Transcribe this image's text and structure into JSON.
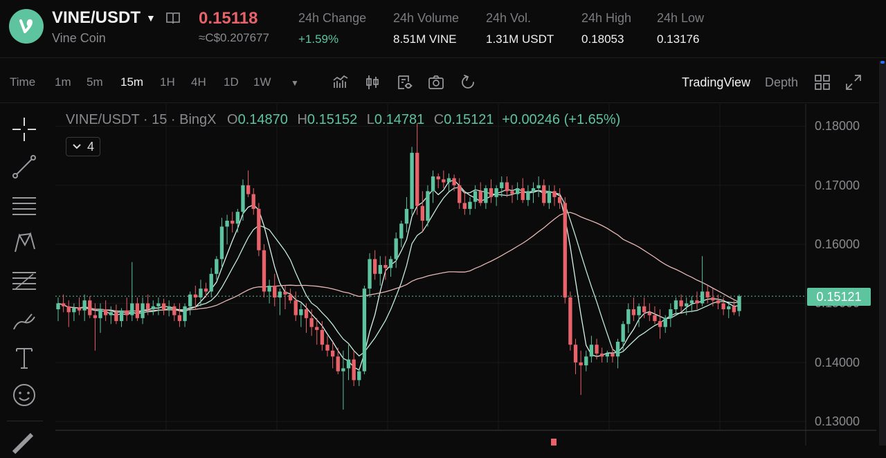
{
  "header": {
    "pair": "VINE/USDT",
    "coin_name": "Vine Coin",
    "price": "0.15118",
    "converted": "≈C$0.207677",
    "stats": [
      {
        "label": "24h Change",
        "value": "+1.59%",
        "up": true
      },
      {
        "label": "24h Volume",
        "value": "8.51M VINE",
        "up": false
      },
      {
        "label": "24h Vol.",
        "value": "1.31M USDT",
        "up": false
      },
      {
        "label": "24h High",
        "value": "0.18053",
        "up": false
      },
      {
        "label": "24h Low",
        "value": "0.13176",
        "up": false
      }
    ]
  },
  "toolbar": {
    "time_label": "Time",
    "timeframes": [
      "1m",
      "5m",
      "15m",
      "1H",
      "4H",
      "1D",
      "1W"
    ],
    "active_timeframe": "15m",
    "tradingview": "TradingView",
    "depth": "Depth"
  },
  "legend": {
    "title": "VINE/USDT · 15 · BingX",
    "o_label": "O",
    "o": "0.14870",
    "h_label": "H",
    "h": "0.15152",
    "l_label": "L",
    "l": "0.14781",
    "c_label": "C",
    "c": "0.15121",
    "change": "+0.00246 (+1.65%)",
    "indicators_count": "4"
  },
  "colors": {
    "up": "#5ec39f",
    "down": "#e8626a",
    "ma_fast": "#d6f5ea",
    "ma_mid": "#bfead6",
    "ma_slow": "#e7b7b5"
  },
  "chart_data": {
    "type": "candlestick",
    "y_ticks": [
      "0.18000",
      "0.17000",
      "0.16000",
      "0.15000",
      "0.14000",
      "0.13000"
    ],
    "ylim": [
      0.1285,
      0.1838
    ],
    "last_price": "0.15121",
    "candles": [
      [
        0.149,
        0.151,
        0.147,
        0.15
      ],
      [
        0.15,
        0.1515,
        0.1485,
        0.1495
      ],
      [
        0.1495,
        0.1505,
        0.146,
        0.1485
      ],
      [
        0.1485,
        0.15,
        0.147,
        0.1492
      ],
      [
        0.1492,
        0.151,
        0.148,
        0.1488
      ],
      [
        0.1488,
        0.1515,
        0.147,
        0.1505
      ],
      [
        0.1505,
        0.1512,
        0.1475,
        0.148
      ],
      [
        0.148,
        0.15,
        0.142,
        0.1475
      ],
      [
        0.1475,
        0.15,
        0.145,
        0.149
      ],
      [
        0.149,
        0.1505,
        0.147,
        0.148
      ],
      [
        0.148,
        0.1495,
        0.1465,
        0.1485
      ],
      [
        0.1485,
        0.1498,
        0.1465,
        0.147
      ],
      [
        0.147,
        0.1492,
        0.146,
        0.1488
      ],
      [
        0.1488,
        0.151,
        0.147,
        0.148
      ],
      [
        0.148,
        0.157,
        0.147,
        0.15
      ],
      [
        0.15,
        0.151,
        0.147,
        0.1475
      ],
      [
        0.1475,
        0.151,
        0.1465,
        0.15
      ],
      [
        0.15,
        0.1515,
        0.148,
        0.149
      ],
      [
        0.149,
        0.1505,
        0.148,
        0.1495
      ],
      [
        0.1495,
        0.151,
        0.148,
        0.15
      ],
      [
        0.15,
        0.1508,
        0.148,
        0.149
      ],
      [
        0.149,
        0.1505,
        0.1478,
        0.1495
      ],
      [
        0.1495,
        0.15,
        0.147,
        0.148
      ],
      [
        0.148,
        0.15,
        0.146,
        0.147
      ],
      [
        0.147,
        0.15,
        0.146,
        0.1495
      ],
      [
        0.1495,
        0.152,
        0.148,
        0.1515
      ],
      [
        0.1515,
        0.153,
        0.149,
        0.151
      ],
      [
        0.151,
        0.154,
        0.1495,
        0.1525
      ],
      [
        0.1525,
        0.1535,
        0.151,
        0.152
      ],
      [
        0.152,
        0.156,
        0.151,
        0.155
      ],
      [
        0.155,
        0.158,
        0.154,
        0.1575
      ],
      [
        0.1575,
        0.1645,
        0.156,
        0.163
      ],
      [
        0.163,
        0.165,
        0.16,
        0.164
      ],
      [
        0.164,
        0.1655,
        0.162,
        0.1635
      ],
      [
        0.1635,
        0.166,
        0.162,
        0.1655
      ],
      [
        0.1655,
        0.171,
        0.164,
        0.17
      ],
      [
        0.17,
        0.1725,
        0.168,
        0.1685
      ],
      [
        0.1685,
        0.1695,
        0.165,
        0.166
      ],
      [
        0.166,
        0.167,
        0.158,
        0.159
      ],
      [
        0.159,
        0.16,
        0.151,
        0.152
      ],
      [
        0.152,
        0.154,
        0.15,
        0.153
      ],
      [
        0.153,
        0.155,
        0.1495,
        0.151
      ],
      [
        0.151,
        0.1525,
        0.148,
        0.152
      ],
      [
        0.152,
        0.153,
        0.149,
        0.1515
      ],
      [
        0.1515,
        0.1525,
        0.15,
        0.1505
      ],
      [
        0.1505,
        0.152,
        0.147,
        0.148
      ],
      [
        0.148,
        0.15,
        0.146,
        0.149
      ],
      [
        0.149,
        0.15,
        0.145,
        0.1475
      ],
      [
        0.1475,
        0.149,
        0.1445,
        0.146
      ],
      [
        0.146,
        0.1475,
        0.143,
        0.1455
      ],
      [
        0.1455,
        0.147,
        0.142,
        0.143
      ],
      [
        0.143,
        0.1445,
        0.141,
        0.142
      ],
      [
        0.142,
        0.1435,
        0.139,
        0.141
      ],
      [
        0.141,
        0.1425,
        0.138,
        0.1385
      ],
      [
        0.1385,
        0.142,
        0.132,
        0.139
      ],
      [
        0.139,
        0.143,
        0.137,
        0.1405
      ],
      [
        0.1405,
        0.142,
        0.136,
        0.137
      ],
      [
        0.137,
        0.139,
        0.136,
        0.1385
      ],
      [
        0.1385,
        0.153,
        0.138,
        0.1525
      ],
      [
        0.1525,
        0.1585,
        0.151,
        0.1575
      ],
      [
        0.1575,
        0.159,
        0.154,
        0.155
      ],
      [
        0.155,
        0.158,
        0.153,
        0.1565
      ],
      [
        0.1565,
        0.158,
        0.154,
        0.156
      ],
      [
        0.156,
        0.158,
        0.1545,
        0.1575
      ],
      [
        0.1575,
        0.162,
        0.156,
        0.161
      ],
      [
        0.161,
        0.164,
        0.1595,
        0.1635
      ],
      [
        0.1635,
        0.168,
        0.162,
        0.166
      ],
      [
        0.166,
        0.1765,
        0.165,
        0.1755
      ],
      [
        0.1755,
        0.1805,
        0.165,
        0.1665
      ],
      [
        0.1665,
        0.169,
        0.162,
        0.164
      ],
      [
        0.164,
        0.17,
        0.163,
        0.169
      ],
      [
        0.169,
        0.1725,
        0.167,
        0.1715
      ],
      [
        0.1715,
        0.172,
        0.1695,
        0.171
      ],
      [
        0.171,
        0.1725,
        0.1695,
        0.1705
      ],
      [
        0.1705,
        0.172,
        0.169,
        0.1712
      ],
      [
        0.1712,
        0.1718,
        0.169,
        0.17
      ],
      [
        0.17,
        0.1712,
        0.166,
        0.167
      ],
      [
        0.167,
        0.169,
        0.165,
        0.166
      ],
      [
        0.166,
        0.168,
        0.165,
        0.1672
      ],
      [
        0.1672,
        0.17,
        0.166,
        0.169
      ],
      [
        0.169,
        0.1705,
        0.1665,
        0.167
      ],
      [
        0.167,
        0.17,
        0.166,
        0.1695
      ],
      [
        0.1695,
        0.171,
        0.167,
        0.168
      ],
      [
        0.168,
        0.17,
        0.1665,
        0.1695
      ],
      [
        0.1695,
        0.1715,
        0.168,
        0.1705
      ],
      [
        0.1705,
        0.1715,
        0.168,
        0.169
      ],
      [
        0.169,
        0.17,
        0.167,
        0.1685
      ],
      [
        0.1685,
        0.1705,
        0.1675,
        0.1695
      ],
      [
        0.1695,
        0.1712,
        0.167,
        0.1675
      ],
      [
        0.1675,
        0.17,
        0.1665,
        0.169
      ],
      [
        0.169,
        0.1705,
        0.167,
        0.1695
      ],
      [
        0.1695,
        0.1715,
        0.168,
        0.17
      ],
      [
        0.17,
        0.171,
        0.1665,
        0.167
      ],
      [
        0.167,
        0.17,
        0.166,
        0.169
      ],
      [
        0.169,
        0.17,
        0.1665,
        0.168
      ],
      [
        0.168,
        0.1695,
        0.166,
        0.167
      ],
      [
        0.167,
        0.168,
        0.15,
        0.151
      ],
      [
        0.151,
        0.152,
        0.142,
        0.143
      ],
      [
        0.143,
        0.144,
        0.138,
        0.14
      ],
      [
        0.14,
        0.142,
        0.1345,
        0.1395
      ],
      [
        0.1395,
        0.142,
        0.1385,
        0.141
      ],
      [
        0.141,
        0.1445,
        0.14,
        0.143
      ],
      [
        0.143,
        0.144,
        0.1405,
        0.1415
      ],
      [
        0.1415,
        0.1425,
        0.14,
        0.141
      ],
      [
        0.141,
        0.142,
        0.14,
        0.1415
      ],
      [
        0.1415,
        0.1425,
        0.14,
        0.141
      ],
      [
        0.141,
        0.144,
        0.139,
        0.1435
      ],
      [
        0.1435,
        0.147,
        0.142,
        0.1465
      ],
      [
        0.1465,
        0.15,
        0.145,
        0.149
      ],
      [
        0.149,
        0.151,
        0.147,
        0.148
      ],
      [
        0.148,
        0.15,
        0.146,
        0.1495
      ],
      [
        0.1495,
        0.151,
        0.1475,
        0.1485
      ],
      [
        0.1485,
        0.15,
        0.147,
        0.148
      ],
      [
        0.148,
        0.1495,
        0.1465,
        0.147
      ],
      [
        0.147,
        0.149,
        0.144,
        0.146
      ],
      [
        0.146,
        0.148,
        0.145,
        0.1475
      ],
      [
        0.1475,
        0.15,
        0.146,
        0.149
      ],
      [
        0.149,
        0.151,
        0.148,
        0.1505
      ],
      [
        0.1505,
        0.1515,
        0.1485,
        0.1495
      ],
      [
        0.1495,
        0.151,
        0.148,
        0.15
      ],
      [
        0.15,
        0.1512,
        0.1485,
        0.1505
      ],
      [
        0.1505,
        0.152,
        0.149,
        0.15
      ],
      [
        0.15,
        0.158,
        0.1495,
        0.152
      ],
      [
        0.152,
        0.153,
        0.15,
        0.151
      ],
      [
        0.151,
        0.1525,
        0.1495,
        0.1505
      ],
      [
        0.1505,
        0.1515,
        0.149,
        0.15
      ],
      [
        0.15,
        0.151,
        0.148,
        0.149
      ],
      [
        0.149,
        0.15,
        0.1475,
        0.1495
      ],
      [
        0.1495,
        0.1505,
        0.148,
        0.1485
      ],
      [
        0.1487,
        0.1515,
        0.1478,
        0.1512
      ]
    ]
  }
}
